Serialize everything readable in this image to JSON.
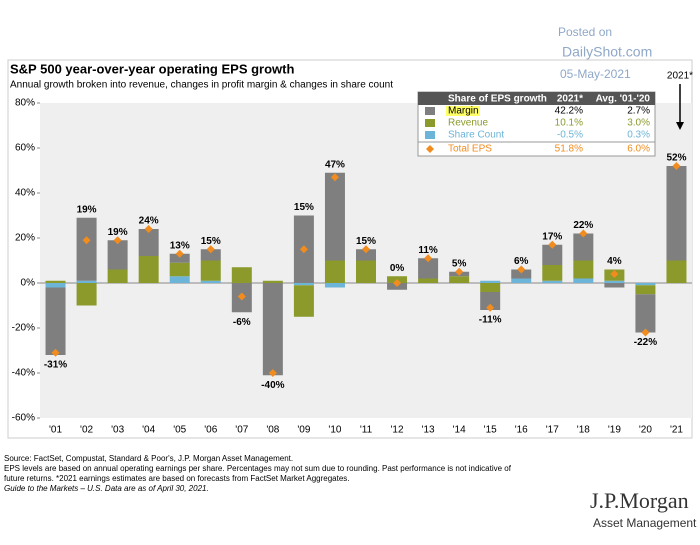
{
  "watermark": [
    "Posted on",
    "DailyShot.com",
    "05-May-2021"
  ],
  "footer": [
    "Source: FactSet, Compustat, Standard & Poor's, J.P. Morgan Asset Management.",
    "EPS levels are based on annual operating earnings per share. Percentages may not sum due to rounding. Past performance is not indicative of",
    "future returns. *2021 earnings estimates are based on forecasts from FactSet Market Aggregates.",
    "Guide to the Markets – U.S. Data are as of April 30, 2021."
  ],
  "logo": [
    "J.P.Morgan",
    "Asset Management"
  ],
  "chart_data": {
    "type": "stacked-bar",
    "title": "S&P 500 year-over-year operating EPS growth",
    "subtitle": "Annual growth broken into revenue, changes in profit margin & changes in share count",
    "annotation": "2021*",
    "categories": [
      "'01",
      "'02",
      "'03",
      "'04",
      "'05",
      "'06",
      "'07",
      "'08",
      "'09",
      "'10",
      "'11",
      "'12",
      "'13",
      "'14",
      "'15",
      "'16",
      "'17",
      "'18",
      "'19",
      "'20",
      "'21"
    ],
    "table_header": [
      "Share of EPS growth",
      "2021*",
      "Avg. '01-'20"
    ],
    "series": [
      {
        "name": "Margin",
        "color": "#7f7f7f",
        "values": [
          -30,
          28,
          13,
          12,
          4,
          5,
          -13,
          -41,
          30,
          39,
          5,
          -3,
          9,
          2,
          -8,
          4,
          9,
          12,
          -2,
          -17,
          42
        ],
        "table_values": [
          "42.2%",
          "2.7%"
        ]
      },
      {
        "name": "Revenue",
        "color": "#8c9a2c",
        "values": [
          1,
          -10,
          6,
          12,
          6,
          9,
          7,
          1,
          -14,
          10,
          10,
          3,
          2,
          3,
          -4,
          0,
          7,
          8,
          5,
          -4,
          10
        ],
        "table_values": [
          "10.1%",
          "3.0%"
        ]
      },
      {
        "name": "Share Count",
        "color": "#6cb4d8",
        "values": [
          -2,
          1,
          0,
          0,
          3,
          1,
          0,
          0,
          -1,
          -2,
          0,
          0,
          0,
          0,
          1,
          2,
          1,
          2,
          1,
          -1,
          0
        ],
        "table_values": [
          "-0.5%",
          "0.3%"
        ]
      }
    ],
    "total": {
      "name": "Total EPS",
      "color": "#f28c1e",
      "values": [
        -31,
        19,
        19,
        24,
        13,
        15,
        -6,
        -40,
        15,
        47,
        15,
        0,
        11,
        5,
        -11,
        6,
        17,
        22,
        4,
        -22,
        52
      ],
      "value_labels": [
        "-31%",
        "19%",
        "19%",
        "24%",
        "13%",
        "15%",
        "-6%",
        "-40%",
        "15%",
        "47%",
        "15%",
        "0%",
        "11%",
        "5%",
        "-11%",
        "6%",
        "17%",
        "22%",
        "4%",
        "-22%",
        "52%"
      ],
      "table_values": [
        "51.8%",
        "6.0%"
      ]
    },
    "ylim": [
      -60,
      80
    ],
    "yticks": [
      {
        "value": -60,
        "label": "-60%"
      },
      {
        "value": -40,
        "label": "-40%"
      },
      {
        "value": -20,
        "label": "-20%"
      },
      {
        "value": 0,
        "label": "0%"
      },
      {
        "value": 20,
        "label": "20%"
      },
      {
        "value": 40,
        "label": "40%"
      },
      {
        "value": 60,
        "label": "60%"
      },
      {
        "value": 80,
        "label": "80%"
      }
    ]
  }
}
